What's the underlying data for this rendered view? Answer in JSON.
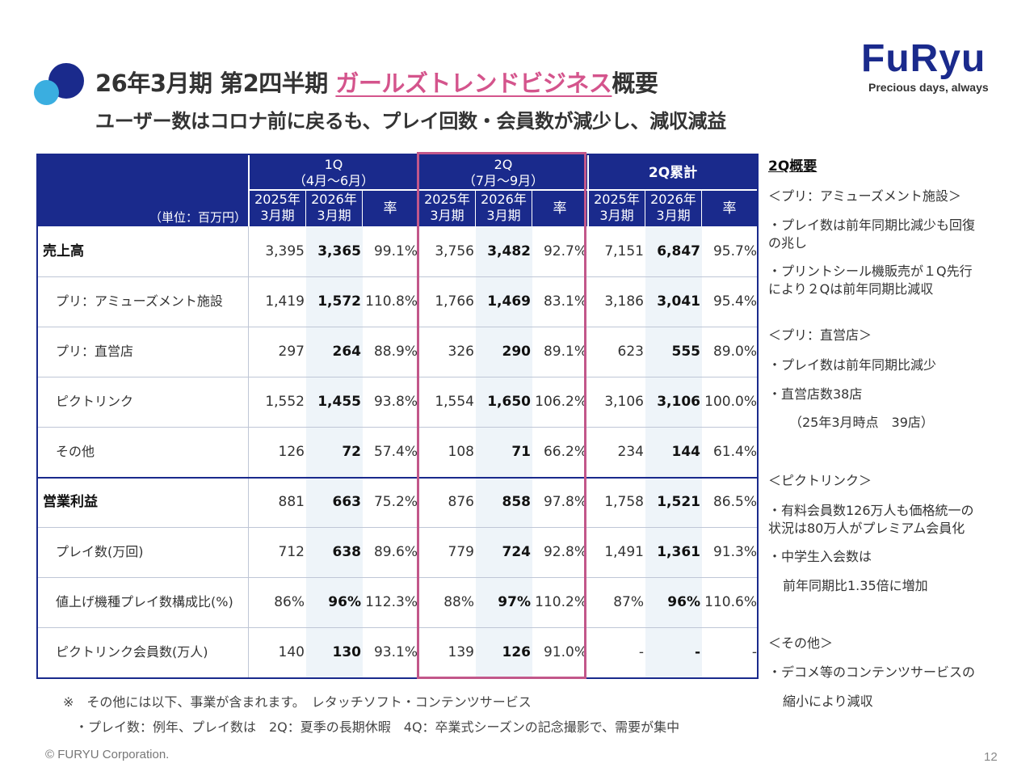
{
  "title": {
    "prefix": "26年3月期 第2四半期 ",
    "highlight": "ガールズトレンドビジネス",
    "suffix": "概要"
  },
  "subtitle": "ユーザー数はコロナ前に戻るも、プレイ回数・会員数が減少し、減収減益",
  "logo": {
    "word": "FuRyu",
    "tagline": "Precious days, always"
  },
  "table": {
    "unit": "（単位：百万円）",
    "groups": [
      {
        "l1": "1Q",
        "l2": "（4月～6月）",
        "c1": [
          "2025年",
          "3月期"
        ],
        "c2": [
          "2026年",
          "3月期"
        ],
        "c3": "率"
      },
      {
        "l1": "2Q",
        "l2": "（7月～9月）",
        "c1": [
          "2025年",
          "3月期"
        ],
        "c2": [
          "2026年",
          "3月期"
        ],
        "c3": "率"
      },
      {
        "l1": "2Q累計",
        "l2": "",
        "c1": [
          "2025年",
          "3月期"
        ],
        "c2": [
          "2026年",
          "3月期"
        ],
        "c3": "率"
      }
    ],
    "rows": [
      {
        "label": "売上高",
        "main": true,
        "v": [
          "3,395",
          "3,365",
          "99.1%",
          "3,756",
          "3,482",
          "92.7%",
          "7,151",
          "6,847",
          "95.7%"
        ]
      },
      {
        "label": "プリ：アミューズメント施設",
        "main": false,
        "v": [
          "1,419",
          "1,572",
          "110.8%",
          "1,766",
          "1,469",
          "83.1%",
          "3,186",
          "3,041",
          "95.4%"
        ]
      },
      {
        "label": "プリ：直営店",
        "main": false,
        "v": [
          "297",
          "264",
          "88.9%",
          "326",
          "290",
          "89.1%",
          "623",
          "555",
          "89.0%"
        ]
      },
      {
        "label": "ピクトリンク",
        "main": false,
        "v": [
          "1,552",
          "1,455",
          "93.8%",
          "1,554",
          "1,650",
          "106.2%",
          "3,106",
          "3,106",
          "100.0%"
        ]
      },
      {
        "label": "その他",
        "main": false,
        "v": [
          "126",
          "72",
          "57.4%",
          "108",
          "71",
          "66.2%",
          "234",
          "144",
          "61.4%"
        ]
      },
      {
        "label": "営業利益",
        "main": true,
        "v": [
          "881",
          "663",
          "75.2%",
          "876",
          "858",
          "97.8%",
          "1,758",
          "1,521",
          "86.5%"
        ]
      },
      {
        "label": "プレイ数(万回)",
        "main": false,
        "v": [
          "712",
          "638",
          "89.6%",
          "779",
          "724",
          "92.8%",
          "1,491",
          "1,361",
          "91.3%"
        ]
      },
      {
        "label": "値上げ機種プレイ数構成比(%)",
        "main": false,
        "v": [
          "86%",
          "96%",
          "112.3%",
          "88%",
          "97%",
          "110.2%",
          "87%",
          "96%",
          "110.6%"
        ]
      },
      {
        "label": "ピクトリンク会員数(万人)",
        "main": false,
        "v": [
          "140",
          "130",
          "93.1%",
          "139",
          "126",
          "91.0%",
          "-",
          "-",
          "-"
        ]
      }
    ]
  },
  "notes": [
    "※　その他には以下、事業が含まれます。　レタッチソフト・コンテンツサービス",
    "・プレイ数：例年、プレイ数は　2Q：夏季の長期休暇　4Q：卒業式シーズンの記念撮影で、需要が集中"
  ],
  "side": [
    {
      "text": "2Q概要",
      "head": true
    },
    {
      "text": "＜プリ：アミューズメント施設＞"
    },
    {
      "text": "・プレイ数は前年同期比減少も回復"
    },
    {
      "text": "の兆し"
    },
    {
      "text": "・プリントシール機販売が１Q先行"
    },
    {
      "text": "により２Qは前年同期比減収"
    },
    {
      "text": "＜プリ：直営店＞"
    },
    {
      "text": "・プレイ数は前年同期比減少"
    },
    {
      "text": "・直営店数38店"
    },
    {
      "text": "（25年3月時点　39店）"
    },
    {
      "text": "＜ピクトリンク＞"
    },
    {
      "text": "・有料会員数126万人も価格統一の"
    },
    {
      "text": "状況は80万人がプレミアム会員化"
    },
    {
      "text": "・中学生入会数は"
    },
    {
      "text": "前年同期比1.35倍に増加"
    },
    {
      "text": "＜その他＞"
    },
    {
      "text": "・デコメ等のコンテンツサービスの"
    },
    {
      "text": "縮小により減収"
    }
  ],
  "footer": "© FURYU Corporation.",
  "page_number": "12",
  "colors": {
    "navy": "#1a2a8c",
    "sky": "#3aaee0",
    "pink": "#d4548c",
    "band": "#eef4f9"
  }
}
